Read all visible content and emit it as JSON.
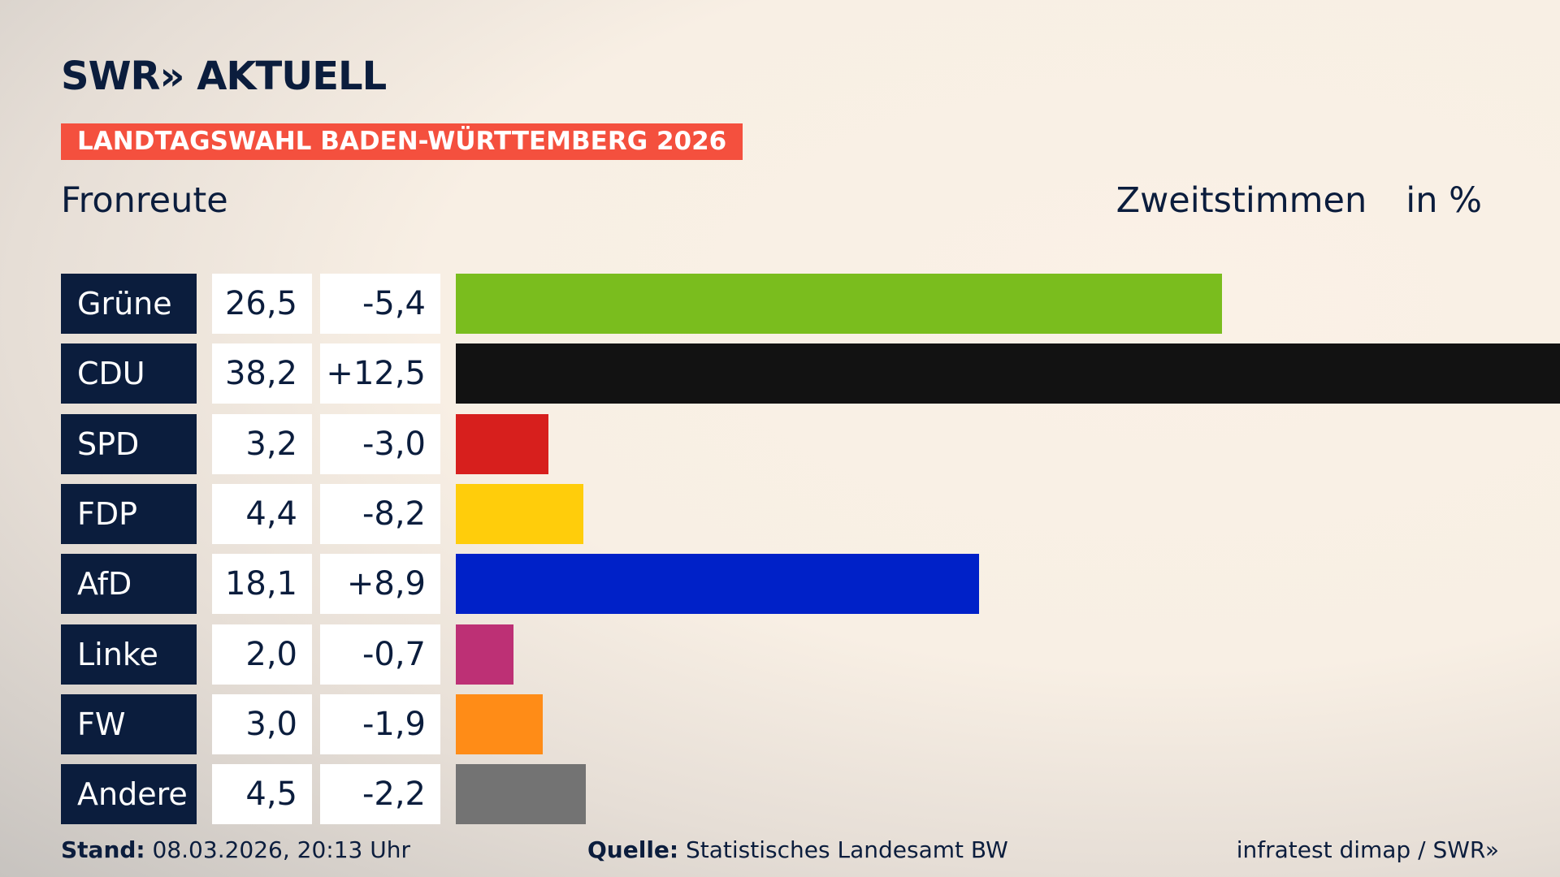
{
  "header": {
    "logo": "SWR» AKTUELL",
    "banner": "LANDTAGSWAHL BADEN-WÜRTTEMBERG 2026",
    "location": "Fronreute",
    "measure": "Zweitstimmen",
    "unit": "in %"
  },
  "chart_data": {
    "type": "bar",
    "orientation": "horizontal",
    "categories": [
      "Grüne",
      "CDU",
      "SPD",
      "FDP",
      "AfD",
      "Linke",
      "FW",
      "Andere"
    ],
    "values": [
      26.5,
      38.2,
      3.2,
      4.4,
      18.1,
      2.0,
      3.0,
      4.5
    ],
    "values_label": [
      "26,5",
      "38,2",
      "3,2",
      "4,4",
      "18,1",
      "2,0",
      "3,0",
      "4,5"
    ],
    "diff": [
      "-5,4",
      "+12,5",
      "-3,0",
      "-8,2",
      "+8,9",
      "-0,7",
      "-1,9",
      "-2,2"
    ],
    "colors": [
      "#7abd1e",
      "#121212",
      "#d71f1d",
      "#ffcd0b",
      "#0021c8",
      "#bd3075",
      "#ff8c17",
      "#737373"
    ],
    "xlim": [
      0,
      38.2
    ]
  },
  "footer": {
    "stand_label": "Stand:",
    "stand": "08.03.2026, 20:13 Uhr",
    "source_label": "Quelle:",
    "source": "Statistisches Landesamt BW",
    "credit": "infratest dimap / SWR»"
  }
}
